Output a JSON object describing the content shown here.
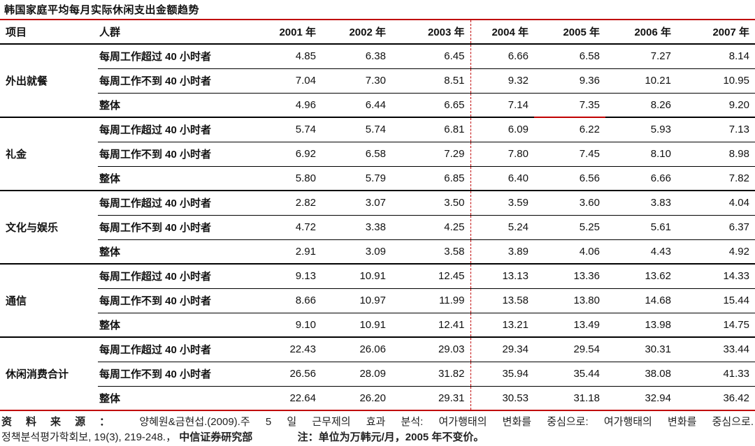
{
  "title": "韩国家庭平均每月实际休闲支出金额趋势",
  "colors": {
    "accent_red": "#C00000",
    "line_black": "#000000",
    "text": "#111111"
  },
  "table": {
    "col_item": "项目",
    "col_group": "人群",
    "years": [
      "2001 年",
      "2002 年",
      "2003 年",
      "2004 年",
      "2005 年",
      "2006 年",
      "2007 年"
    ],
    "row_labels": [
      "每周工作超过 40 小时者",
      "每周工作不到 40 小时者",
      "整体"
    ],
    "groups": [
      {
        "name": "外出就餐",
        "rows": [
          [
            "4.85",
            "6.38",
            "6.45",
            "6.66",
            "6.58",
            "7.27",
            "8.14"
          ],
          [
            "7.04",
            "7.30",
            "8.51",
            "9.32",
            "9.36",
            "10.21",
            "10.95"
          ],
          [
            "4.96",
            "6.44",
            "6.65",
            "7.14",
            "7.35",
            "8.26",
            "9.20"
          ]
        ]
      },
      {
        "name": "礼金",
        "rows": [
          [
            "5.74",
            "5.74",
            "6.81",
            "6.09",
            "6.22",
            "5.93",
            "7.13"
          ],
          [
            "6.92",
            "6.58",
            "7.29",
            "7.80",
            "7.45",
            "8.10",
            "8.98"
          ],
          [
            "5.80",
            "5.79",
            "6.85",
            "6.40",
            "6.56",
            "6.66",
            "7.82"
          ]
        ]
      },
      {
        "name": "文化与娱乐",
        "rows": [
          [
            "2.82",
            "3.07",
            "3.50",
            "3.59",
            "3.60",
            "3.83",
            "4.04"
          ],
          [
            "4.72",
            "3.38",
            "4.25",
            "5.24",
            "5.25",
            "5.61",
            "6.37"
          ],
          [
            "2.91",
            "3.09",
            "3.58",
            "3.89",
            "4.06",
            "4.43",
            "4.92"
          ]
        ]
      },
      {
        "name": "通信",
        "rows": [
          [
            "9.13",
            "10.91",
            "12.45",
            "13.13",
            "13.36",
            "13.62",
            "14.33"
          ],
          [
            "8.66",
            "10.97",
            "11.99",
            "13.58",
            "13.80",
            "14.68",
            "15.44"
          ],
          [
            "9.10",
            "10.91",
            "12.41",
            "13.21",
            "13.49",
            "13.98",
            "14.75"
          ]
        ]
      },
      {
        "name": "休闲消费合计",
        "rows": [
          [
            "22.43",
            "26.06",
            "29.03",
            "29.34",
            "29.54",
            "30.31",
            "33.44"
          ],
          [
            "26.56",
            "28.09",
            "31.82",
            "35.94",
            "35.44",
            "38.08",
            "41.33"
          ],
          [
            "22.64",
            "26.20",
            "29.31",
            "30.53",
            "31.18",
            "32.94",
            "36.42"
          ]
        ]
      }
    ]
  },
  "footer": {
    "source_label": "资料来源：",
    "source_text_line1": "양혜원&금현섭.(2009).주 5 일 근무제의 효과 분석: 여가행태의 변화를 중심으로: 여가행태의 변화를 중심으로.",
    "source_text_line2": "정책분석평가학회보, 19(3), 219-248.，",
    "source_org": "中信证券研究部",
    "note": "注：单位为万韩元/月，2005 年不变价。"
  }
}
